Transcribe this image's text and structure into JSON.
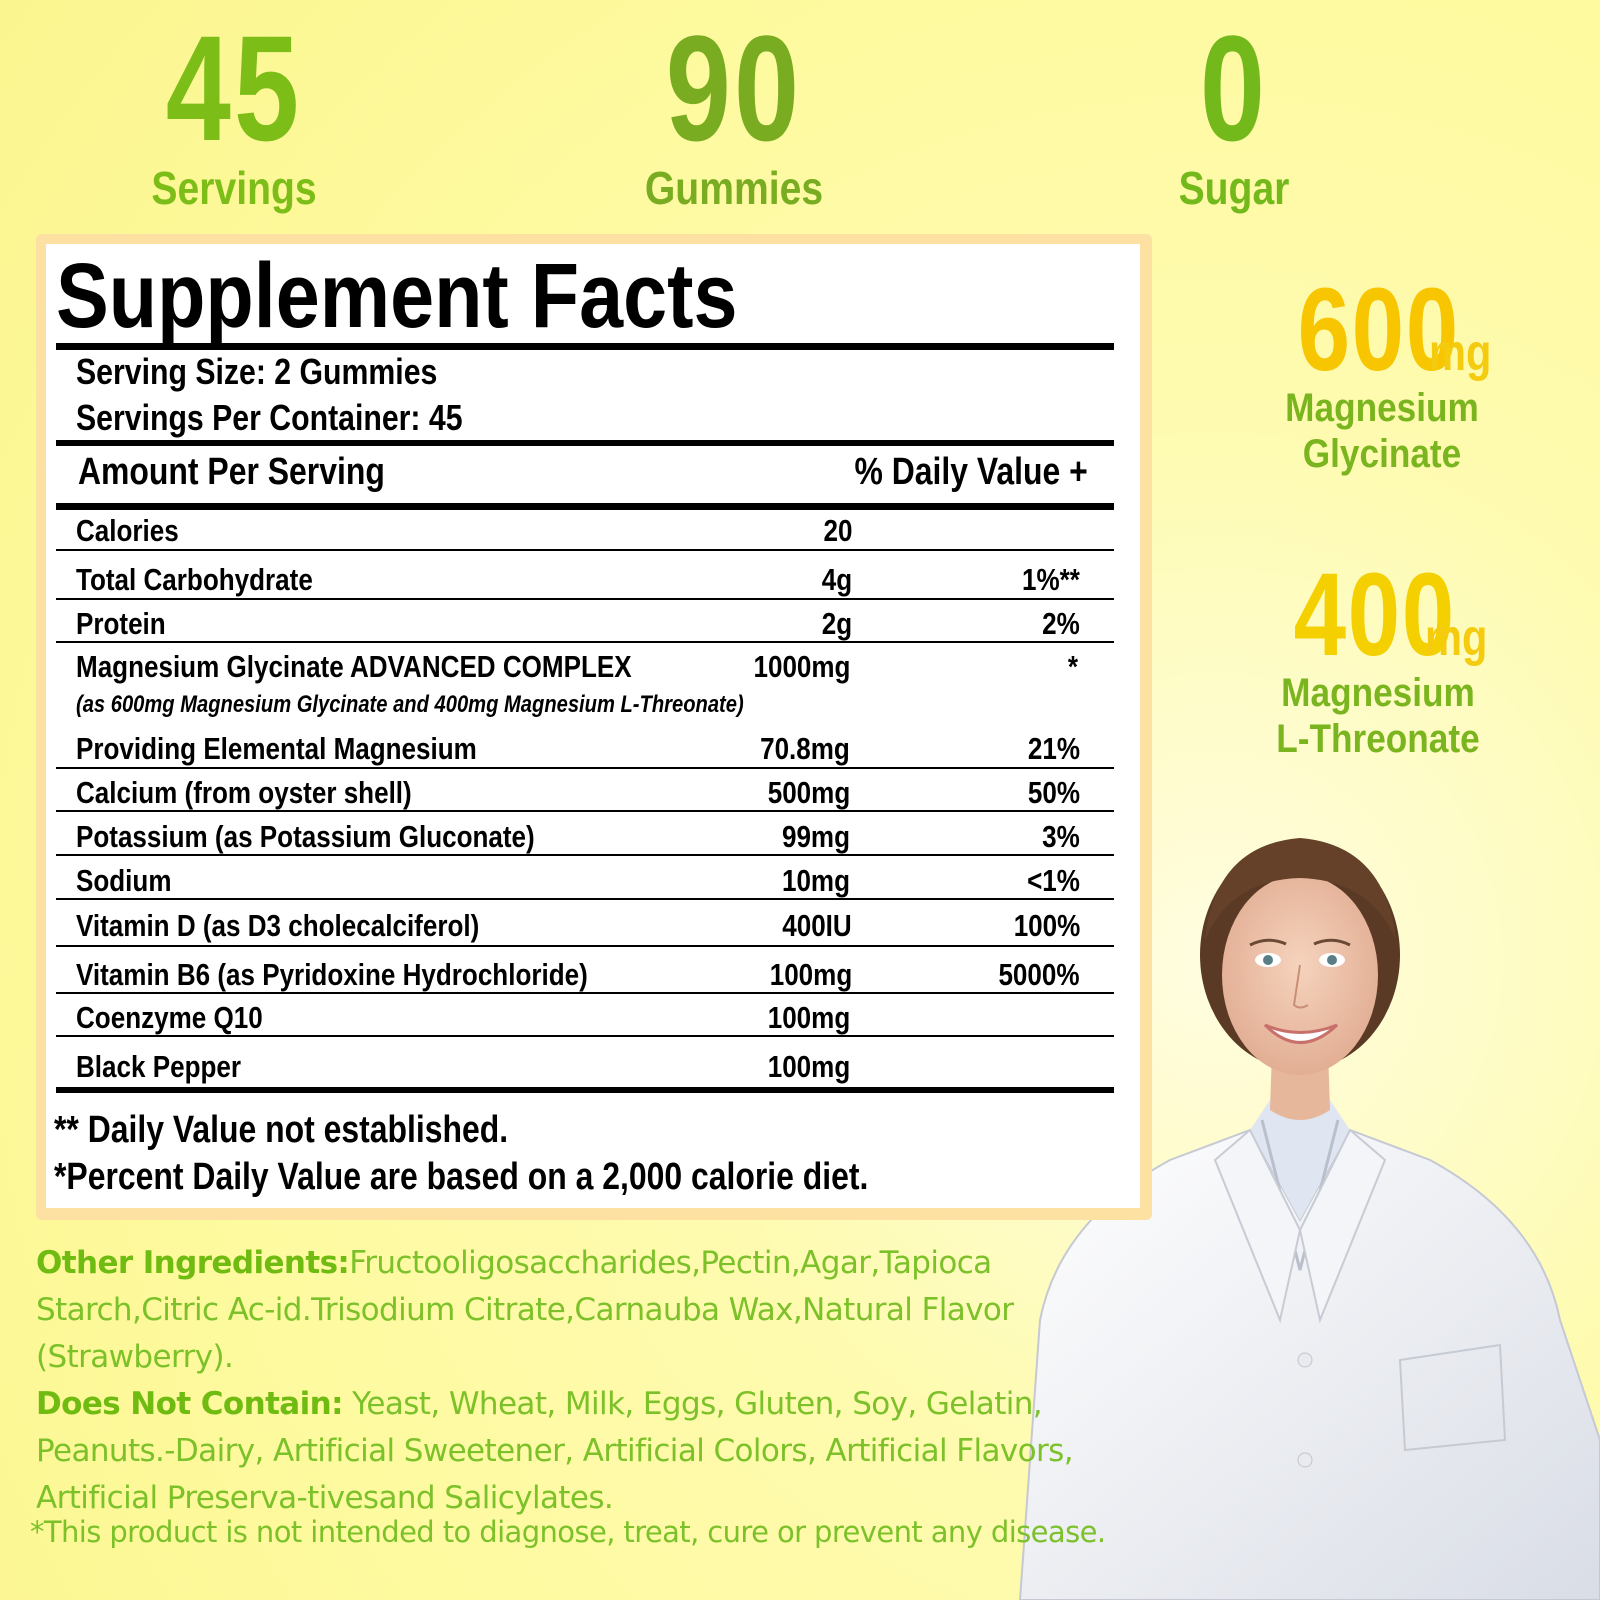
{
  "stats": [
    {
      "value": "45",
      "label": "Servings"
    },
    {
      "value": "90",
      "label": "Gummies"
    },
    {
      "value": "0",
      "label": "Sugar"
    }
  ],
  "doses": [
    {
      "amount": "600",
      "unit": "mg",
      "name_line1": "Magnesium",
      "name_line2": "Glycinate"
    },
    {
      "amount": "400",
      "unit": "mg",
      "name_line1": "Magnesium",
      "name_line2": "L-Threonate"
    }
  ],
  "panel": {
    "title": "Supplement Facts",
    "serving_size": "Serving Size: 2 Gummies",
    "servings_per_container": "Servings Per Container: 45",
    "amount_header": "Amount Per Serving",
    "dv_header": "% Daily Value +",
    "rows": [
      {
        "name": "Calories",
        "amount": "20",
        "dv": ""
      },
      {
        "name": "Total Carbohydrate",
        "amount": "4g",
        "dv": "1%**"
      },
      {
        "name": "Protein",
        "amount": "2g",
        "dv": "2%"
      },
      {
        "name": "Magnesium Glycinate ADVANCED COMPLEX",
        "sub": "(as 600mg Magnesium Glycinate and 400mg Magnesium L-Threonate)",
        "amount": "1000mg",
        "dv": "*"
      },
      {
        "name": "Providing Elemental Magnesium",
        "amount": "70.8mg",
        "dv": "21%"
      },
      {
        "name": "Calcium (from oyster shell)",
        "amount": "500mg",
        "dv": "50%"
      },
      {
        "name": "Potassium (as Potassium Gluconate)",
        "amount": "99mg",
        "dv": "3%"
      },
      {
        "name": "Sodium",
        "amount": "10mg",
        "dv": "<1%"
      },
      {
        "name": "Vitamin D (as D3 cholecalciferol)",
        "amount": "400IU",
        "dv": "100%"
      },
      {
        "name": "Vitamin B6 (as Pyridoxine Hydrochloride)",
        "amount": "100mg",
        "dv": "5000%"
      },
      {
        "name": "Coenzyme Q10",
        "amount": "100mg",
        "dv": ""
      },
      {
        "name": "Black Pepper",
        "amount": "100mg",
        "dv": ""
      }
    ],
    "footnote1": "** Daily Value not established.",
    "footnote2": "*Percent Daily Value are based on a 2,000 calorie diet."
  },
  "ingredients": {
    "other_label": "Other Ingredients:",
    "other_text": "Fructooligosaccharides,Pectin,Agar,Tapioca Starch,Citric Ac-id.Trisodium Citrate,Carnauba Wax,Natural Flavor (Strawberry).",
    "not_label": "Does Not Contain:",
    "not_text": " Yeast, Wheat, Milk, Eggs, Gluten, Soy, Gelatin, Peanuts.-Dairy, Artificial Sweetener, Artificial Colors, Artificial Flavors, Artificial Preserva-tivesand Salicylates."
  },
  "disclaimer": "*This product is not intended to diagnose, treat, cure or prevent any disease.",
  "colors": {
    "background": "#fdfba0",
    "green": "#7cbd18",
    "yellow": "#f7c600",
    "panel_border": "#fde1a3"
  }
}
